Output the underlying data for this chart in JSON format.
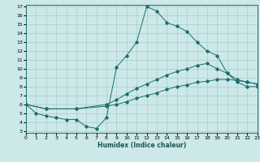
{
  "xlabel": "Humidex (Indice chaleur)",
  "xlim": [
    0,
    23
  ],
  "ylim": [
    3,
    17
  ],
  "xticks": [
    0,
    1,
    2,
    3,
    4,
    5,
    6,
    7,
    8,
    9,
    10,
    11,
    12,
    13,
    14,
    15,
    16,
    17,
    18,
    19,
    20,
    21,
    22,
    23
  ],
  "yticks": [
    3,
    4,
    5,
    6,
    7,
    8,
    9,
    10,
    11,
    12,
    13,
    14,
    15,
    16,
    17
  ],
  "bg_color": "#cde8e8",
  "line_color": "#1a6e6e",
  "grid_color": "#a8cccc",
  "line1_x": [
    0,
    1,
    2,
    3,
    4,
    5,
    6,
    7,
    8,
    9,
    10,
    11,
    12,
    13,
    14,
    15,
    16,
    17,
    18,
    19,
    20,
    21,
    22,
    23
  ],
  "line1_y": [
    6.0,
    5.0,
    4.7,
    4.5,
    4.3,
    4.3,
    3.5,
    3.3,
    4.5,
    10.2,
    11.5,
    13.0,
    17.0,
    16.5,
    15.2,
    14.8,
    14.2,
    13.0,
    12.0,
    11.5,
    9.5,
    8.5,
    8.0,
    8.0
  ],
  "line2_x": [
    0,
    2,
    5,
    8,
    9,
    10,
    11,
    12,
    13,
    14,
    15,
    16,
    17,
    18,
    19,
    20,
    21,
    22,
    23
  ],
  "line2_y": [
    6.0,
    5.5,
    5.5,
    6.0,
    6.5,
    7.2,
    7.8,
    8.3,
    8.8,
    9.3,
    9.7,
    10.0,
    10.4,
    10.6,
    10.0,
    9.5,
    8.8,
    8.5,
    8.3
  ],
  "line3_x": [
    0,
    2,
    5,
    8,
    9,
    10,
    11,
    12,
    13,
    14,
    15,
    16,
    17,
    18,
    19,
    20,
    21,
    22,
    23
  ],
  "line3_y": [
    6.0,
    5.5,
    5.5,
    5.8,
    6.0,
    6.3,
    6.7,
    7.0,
    7.3,
    7.7,
    8.0,
    8.2,
    8.5,
    8.6,
    8.8,
    8.8,
    8.7,
    8.5,
    8.3
  ]
}
